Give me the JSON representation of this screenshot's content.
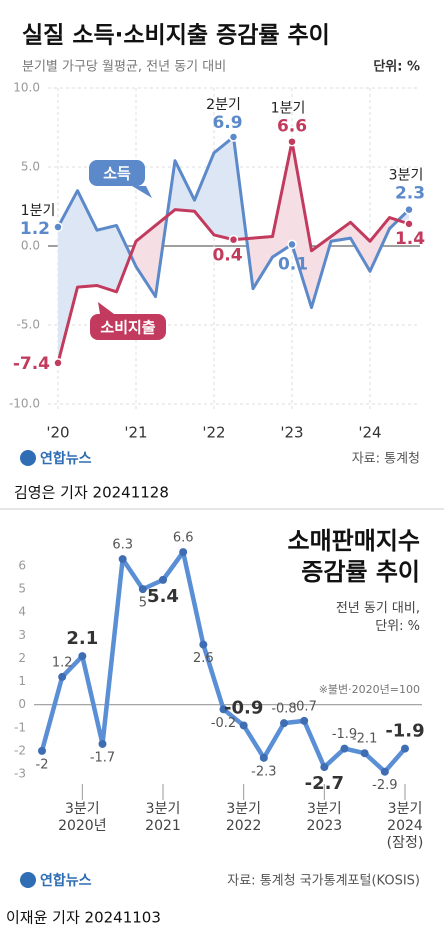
{
  "chart_data": [
    {
      "type": "line",
      "title": "실질 소득·소비지출 증감률 추이",
      "subtitle": "분기별 가구당 월평균, 전년 동기 대비",
      "unit": "단위: %",
      "categories": [
        "'20",
        null,
        null,
        null,
        "'21",
        null,
        null,
        null,
        "'22",
        null,
        null,
        null,
        "'23",
        null,
        null,
        null,
        "'24",
        null,
        null
      ],
      "series": [
        {
          "name": "소득",
          "color": "#5b89c9",
          "values": [
            1.2,
            3.5,
            1.0,
            1.3,
            -1.3,
            -3.2,
            5.4,
            2.9,
            5.9,
            6.9,
            -2.7,
            -0.7,
            0.1,
            -3.9,
            0.3,
            0.5,
            -1.6,
            1.1,
            2.3
          ]
        },
        {
          "name": "소비지출",
          "color": "#c23b5e",
          "values": [
            -7.4,
            -2.6,
            -2.5,
            -2.9,
            0.3,
            1.3,
            2.3,
            2.2,
            0.7,
            0.4,
            0.5,
            0.6,
            6.6,
            -0.3,
            0.6,
            1.5,
            0.3,
            1.8,
            1.4
          ]
        }
      ],
      "labeled_points": [
        0,
        9,
        12,
        18
      ],
      "annotations": [
        {
          "text": "1분기",
          "series": 0,
          "index": 0
        },
        {
          "text": "2분기",
          "series": 0,
          "index": 9
        },
        {
          "text": "1분기",
          "series": 1,
          "index": 12
        },
        {
          "text": "3분기",
          "series": 0,
          "index": 18
        }
      ],
      "ylim": [
        -10,
        10
      ],
      "yticks": [
        {
          "value": -10,
          "label": "-10.0"
        },
        {
          "value": -5,
          "label": "-5.0"
        },
        {
          "value": 0,
          "label": "0.0"
        },
        {
          "value": 5,
          "label": "5.0"
        },
        {
          "value": 10,
          "label": "10.0"
        }
      ],
      "grid": true,
      "fill_between": true,
      "logo": "연합뉴스",
      "source": "자료: 통계청",
      "byline": "김영은 기자 20241128"
    },
    {
      "type": "line",
      "title": "소매판매지수\n증감률 추이",
      "subtitle": "전년 동기 대비,\n단위: %",
      "note": "※불변·2020년=100",
      "categories": [
        null,
        null,
        "3분기\n2020년",
        null,
        null,
        null,
        "3분기\n2021",
        null,
        null,
        null,
        "3분기\n2022",
        null,
        null,
        null,
        "3분기\n2023",
        null,
        null,
        null,
        "3분기\n2024\n(잠정)"
      ],
      "color": "#5a8fd6",
      "values": [
        -2.0,
        1.2,
        2.1,
        -1.7,
        6.3,
        5.0,
        5.4,
        6.6,
        2.6,
        -0.2,
        -0.9,
        -2.3,
        -0.8,
        -0.7,
        -2.7,
        -1.9,
        -2.1,
        -2.9,
        -1.9
      ],
      "bold_labels": [
        2,
        6,
        10,
        14,
        18
      ],
      "ylim": [
        -3,
        6
      ],
      "yticks": [
        -3,
        -2,
        -1,
        0,
        1,
        2,
        3,
        4,
        5,
        6
      ],
      "grid": false,
      "logo": "연합뉴스",
      "source": "자료: 통계청 국가통계포털(KOSIS)",
      "byline": "이재윤 기자 20241103"
    }
  ]
}
